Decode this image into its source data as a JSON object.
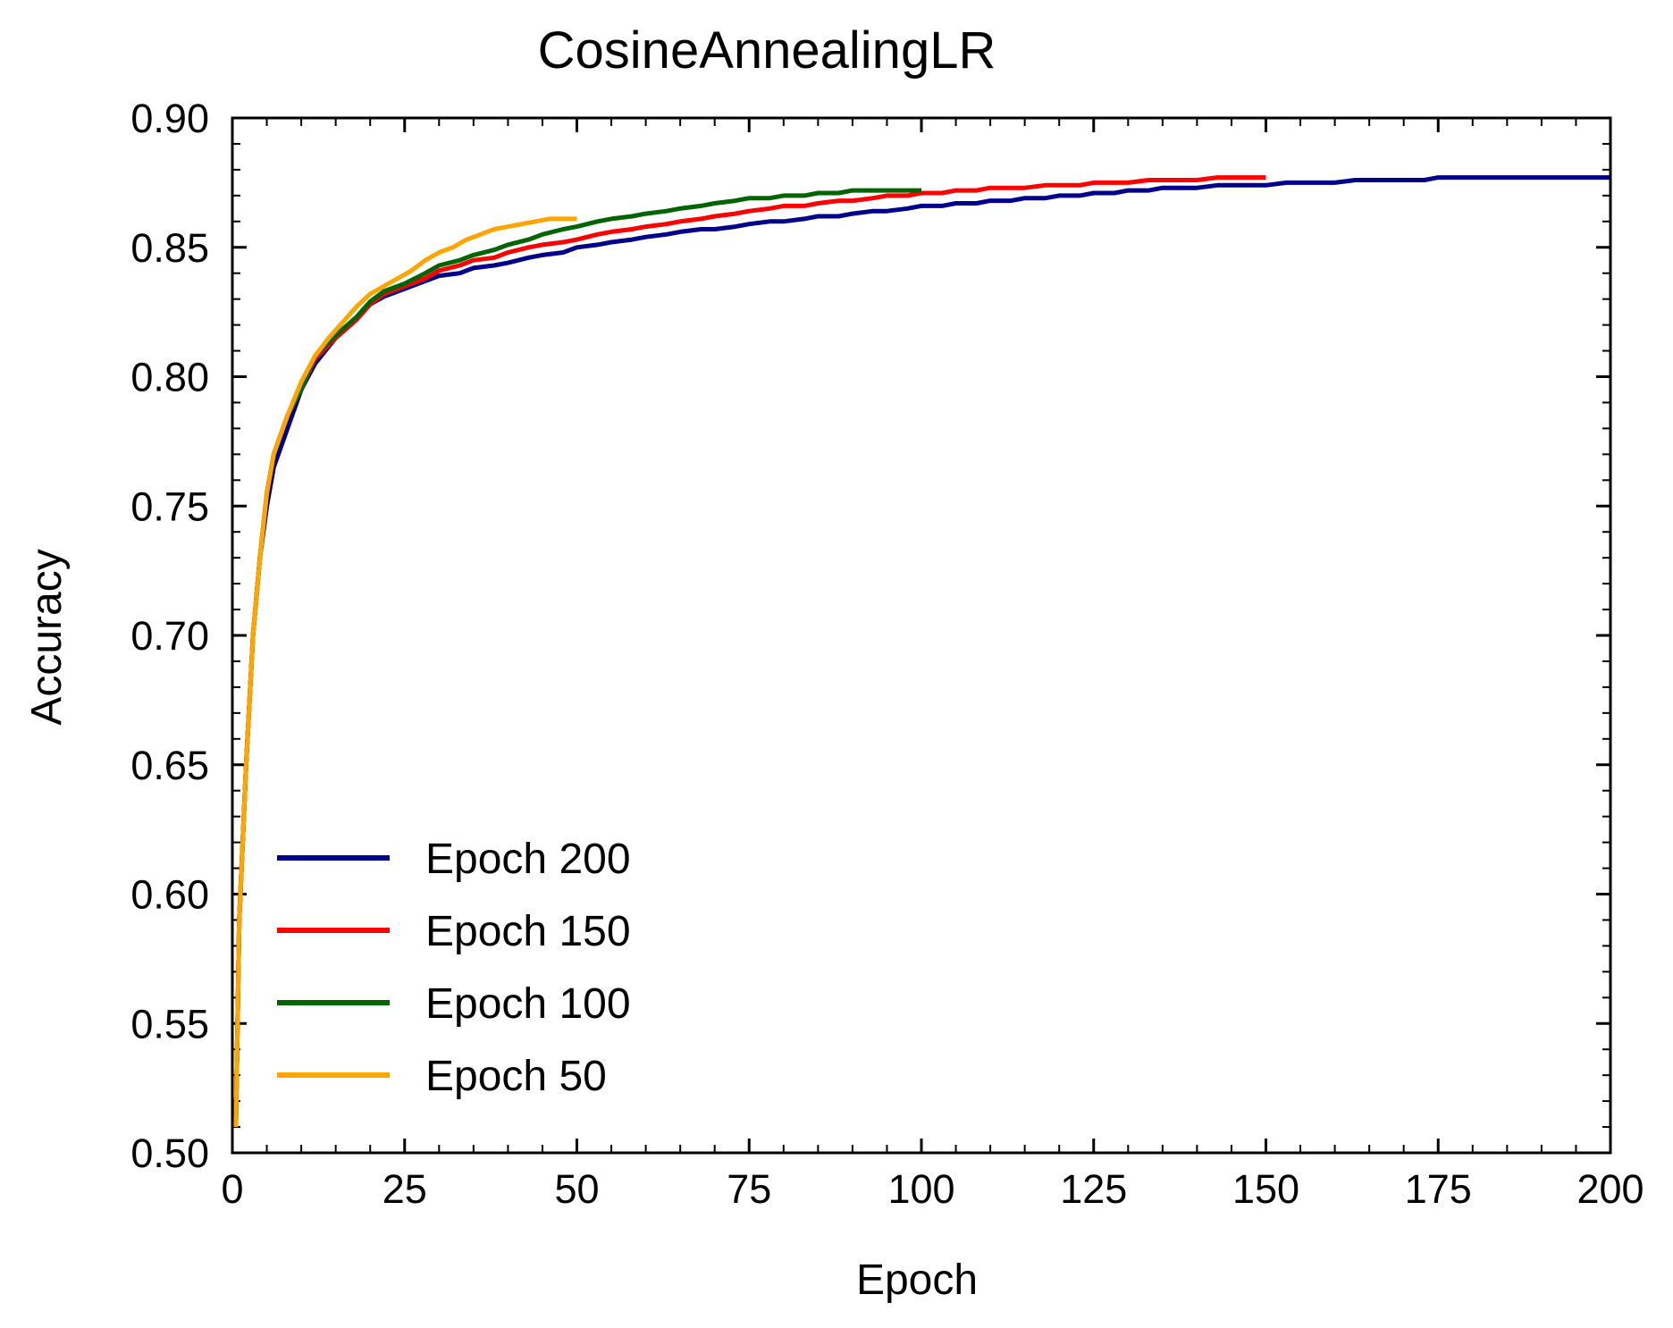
{
  "chart_data": {
    "type": "line",
    "title": "CosineAnnealingLR",
    "xlabel": "Epoch",
    "ylabel": "Accuracy",
    "xlim": [
      0,
      200
    ],
    "ylim": [
      0.5,
      0.9
    ],
    "x_ticks": [
      "0",
      "25",
      "50",
      "75",
      "100",
      "125",
      "150",
      "175",
      "200"
    ],
    "y_ticks": [
      "0.50",
      "0.55",
      "0.60",
      "0.65",
      "0.70",
      "0.75",
      "0.80",
      "0.85",
      "0.90"
    ],
    "grid": false,
    "legend_position": "lower-left",
    "series": [
      {
        "name": "Epoch 200",
        "color": "#00008b",
        "x": [
          0.5,
          1,
          2,
          3,
          4,
          5,
          6,
          8,
          10,
          12,
          15,
          18,
          20,
          22,
          25,
          28,
          30,
          33,
          35,
          38,
          40,
          43,
          45,
          48,
          50,
          53,
          55,
          58,
          60,
          63,
          65,
          68,
          70,
          73,
          75,
          78,
          80,
          83,
          85,
          88,
          90,
          93,
          95,
          98,
          100,
          103,
          105,
          108,
          110,
          113,
          115,
          118,
          120,
          123,
          125,
          128,
          130,
          133,
          135,
          138,
          140,
          143,
          145,
          148,
          150,
          153,
          155,
          158,
          160,
          163,
          165,
          168,
          170,
          173,
          175,
          178,
          180,
          183,
          185,
          188,
          190,
          193,
          195,
          198,
          200
        ],
        "values": [
          0.51,
          0.59,
          0.65,
          0.7,
          0.73,
          0.75,
          0.765,
          0.78,
          0.795,
          0.805,
          0.815,
          0.822,
          0.828,
          0.831,
          0.834,
          0.837,
          0.839,
          0.84,
          0.842,
          0.843,
          0.844,
          0.846,
          0.847,
          0.848,
          0.85,
          0.851,
          0.852,
          0.853,
          0.854,
          0.855,
          0.856,
          0.857,
          0.857,
          0.858,
          0.859,
          0.86,
          0.86,
          0.861,
          0.862,
          0.862,
          0.863,
          0.864,
          0.864,
          0.865,
          0.866,
          0.866,
          0.867,
          0.867,
          0.868,
          0.868,
          0.869,
          0.869,
          0.87,
          0.87,
          0.871,
          0.871,
          0.872,
          0.872,
          0.873,
          0.873,
          0.873,
          0.874,
          0.874,
          0.874,
          0.874,
          0.875,
          0.875,
          0.875,
          0.875,
          0.876,
          0.876,
          0.876,
          0.876,
          0.876,
          0.877,
          0.877,
          0.877,
          0.877,
          0.877,
          0.877,
          0.877,
          0.877,
          0.877,
          0.877,
          0.877
        ]
      },
      {
        "name": "Epoch 150",
        "color": "#ff0000",
        "x": [
          0.5,
          1,
          2,
          3,
          4,
          5,
          6,
          8,
          10,
          12,
          15,
          18,
          20,
          22,
          25,
          28,
          30,
          33,
          35,
          38,
          40,
          43,
          45,
          48,
          50,
          53,
          55,
          58,
          60,
          63,
          65,
          68,
          70,
          73,
          75,
          78,
          80,
          83,
          85,
          88,
          90,
          93,
          95,
          98,
          100,
          103,
          105,
          108,
          110,
          113,
          115,
          118,
          120,
          123,
          125,
          128,
          130,
          133,
          135,
          138,
          140,
          143,
          145,
          148,
          150
        ],
        "values": [
          0.51,
          0.59,
          0.65,
          0.7,
          0.73,
          0.755,
          0.77,
          0.785,
          0.795,
          0.807,
          0.815,
          0.822,
          0.828,
          0.832,
          0.835,
          0.838,
          0.841,
          0.843,
          0.845,
          0.846,
          0.848,
          0.85,
          0.851,
          0.852,
          0.853,
          0.855,
          0.856,
          0.857,
          0.858,
          0.859,
          0.86,
          0.861,
          0.862,
          0.863,
          0.864,
          0.865,
          0.866,
          0.866,
          0.867,
          0.868,
          0.868,
          0.869,
          0.87,
          0.87,
          0.871,
          0.871,
          0.872,
          0.872,
          0.873,
          0.873,
          0.873,
          0.874,
          0.874,
          0.874,
          0.875,
          0.875,
          0.875,
          0.876,
          0.876,
          0.876,
          0.876,
          0.877,
          0.877,
          0.877,
          0.877
        ]
      },
      {
        "name": "Epoch 100",
        "color": "#006400",
        "x": [
          0.5,
          1,
          2,
          3,
          4,
          5,
          6,
          8,
          10,
          12,
          15,
          18,
          20,
          22,
          25,
          28,
          30,
          33,
          35,
          38,
          40,
          43,
          45,
          48,
          50,
          53,
          55,
          58,
          60,
          63,
          65,
          68,
          70,
          73,
          75,
          78,
          80,
          83,
          85,
          88,
          90,
          93,
          95,
          98,
          100
        ],
        "values": [
          0.51,
          0.59,
          0.65,
          0.7,
          0.73,
          0.755,
          0.77,
          0.785,
          0.795,
          0.808,
          0.816,
          0.823,
          0.829,
          0.833,
          0.836,
          0.84,
          0.843,
          0.845,
          0.847,
          0.849,
          0.851,
          0.853,
          0.855,
          0.857,
          0.858,
          0.86,
          0.861,
          0.862,
          0.863,
          0.864,
          0.865,
          0.866,
          0.867,
          0.868,
          0.869,
          0.869,
          0.87,
          0.87,
          0.871,
          0.871,
          0.872,
          0.872,
          0.872,
          0.872,
          0.872
        ]
      },
      {
        "name": "Epoch 50",
        "color": "#ffa500",
        "x": [
          0.5,
          1,
          2,
          3,
          4,
          5,
          6,
          8,
          10,
          12,
          14,
          16,
          18,
          20,
          22,
          24,
          26,
          28,
          30,
          32,
          34,
          36,
          38,
          40,
          42,
          44,
          46,
          48,
          50
        ],
        "values": [
          0.51,
          0.59,
          0.65,
          0.7,
          0.73,
          0.755,
          0.77,
          0.785,
          0.798,
          0.808,
          0.815,
          0.821,
          0.827,
          0.832,
          0.835,
          0.838,
          0.841,
          0.845,
          0.848,
          0.85,
          0.853,
          0.855,
          0.857,
          0.858,
          0.859,
          0.86,
          0.861,
          0.861,
          0.861
        ]
      }
    ]
  }
}
